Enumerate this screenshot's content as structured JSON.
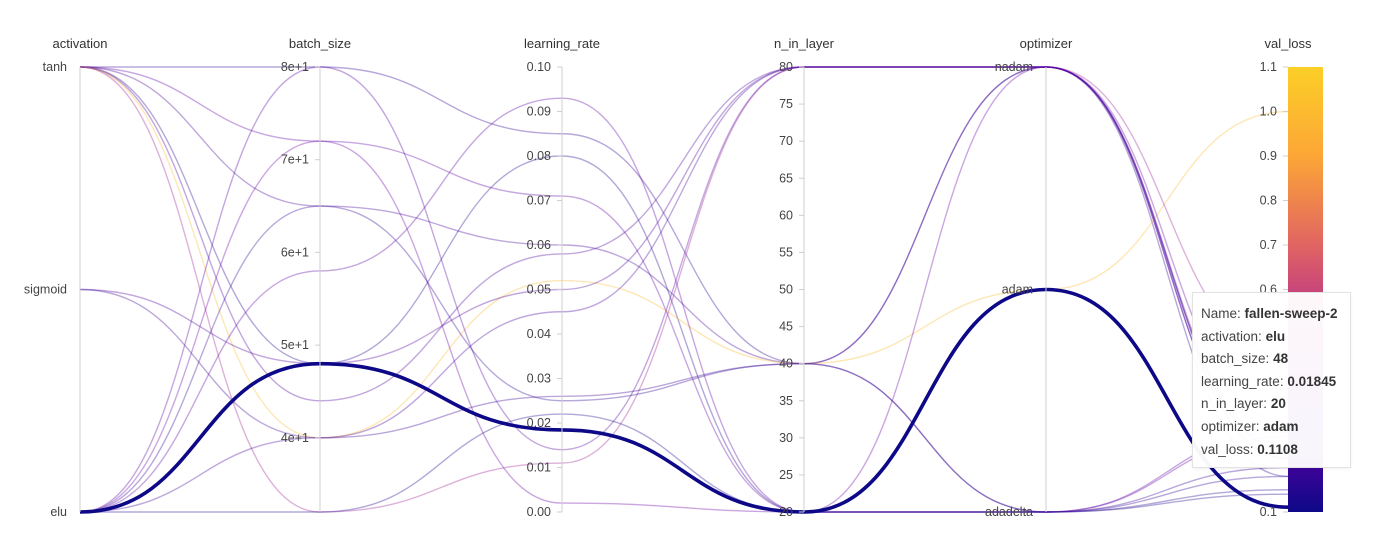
{
  "chart_data": {
    "type": "parallel_coordinates",
    "axes": [
      {
        "key": "activation",
        "label": "activation",
        "kind": "categorical",
        "categories": [
          "elu",
          "sigmoid",
          "tanh"
        ],
        "ticks": [
          "tanh",
          "sigmoid",
          "elu"
        ]
      },
      {
        "key": "batch_size",
        "label": "batch_size",
        "kind": "numeric",
        "range": [
          32,
          80
        ],
        "ticks": [
          {
            "value": 80,
            "label": "8e+1"
          },
          {
            "value": 70,
            "label": "7e+1"
          },
          {
            "value": 60,
            "label": "6e+1"
          },
          {
            "value": 50,
            "label": "5e+1"
          },
          {
            "value": 40,
            "label": "4e+1"
          }
        ]
      },
      {
        "key": "learning_rate",
        "label": "learning_rate",
        "kind": "numeric",
        "range": [
          0,
          0.1
        ],
        "ticks": [
          {
            "value": 0.1,
            "label": "0.10"
          },
          {
            "value": 0.09,
            "label": "0.09"
          },
          {
            "value": 0.08,
            "label": "0.08"
          },
          {
            "value": 0.07,
            "label": "0.07"
          },
          {
            "value": 0.06,
            "label": "0.06"
          },
          {
            "value": 0.05,
            "label": "0.05"
          },
          {
            "value": 0.04,
            "label": "0.04"
          },
          {
            "value": 0.03,
            "label": "0.03"
          },
          {
            "value": 0.02,
            "label": "0.02"
          },
          {
            "value": 0.01,
            "label": "0.01"
          },
          {
            "value": 0.0,
            "label": "0.00"
          }
        ]
      },
      {
        "key": "n_in_layer",
        "label": "n_in_layer",
        "kind": "numeric",
        "range": [
          20,
          80
        ],
        "ticks": [
          {
            "value": 80,
            "label": "80"
          },
          {
            "value": 75,
            "label": "75"
          },
          {
            "value": 70,
            "label": "70"
          },
          {
            "value": 65,
            "label": "65"
          },
          {
            "value": 60,
            "label": "60"
          },
          {
            "value": 55,
            "label": "55"
          },
          {
            "value": 50,
            "label": "50"
          },
          {
            "value": 45,
            "label": "45"
          },
          {
            "value": 40,
            "label": "40"
          },
          {
            "value": 35,
            "label": "35"
          },
          {
            "value": 30,
            "label": "30"
          },
          {
            "value": 25,
            "label": "25"
          },
          {
            "value": 20,
            "label": "20"
          }
        ]
      },
      {
        "key": "optimizer",
        "label": "optimizer",
        "kind": "categorical",
        "categories": [
          "adadelta",
          "adam",
          "nadam"
        ],
        "ticks": [
          "nadam",
          "adam",
          "adadelta"
        ]
      },
      {
        "key": "val_loss",
        "label": "val_loss",
        "kind": "numeric",
        "range": [
          0.1,
          1.1
        ],
        "ticks": [
          {
            "value": 1.1,
            "label": "1.1"
          },
          {
            "value": 1.0,
            "label": "1.0"
          },
          {
            "value": 0.9,
            "label": "0.9"
          },
          {
            "value": 0.8,
            "label": "0.8"
          },
          {
            "value": 0.7,
            "label": "0.7"
          },
          {
            "value": 0.6,
            "label": "0.6"
          },
          {
            "value": 0.1,
            "label": "0.1"
          }
        ]
      }
    ],
    "colorbar": {
      "axis": "val_loss",
      "range": [
        0.1,
        1.1
      ],
      "stops": [
        "#0d0887",
        "#6a00a8",
        "#b12a90",
        "#e16462",
        "#fca636",
        "#fccf27"
      ]
    },
    "runs": [
      {
        "activation": "tanh",
        "batch_size": 80,
        "learning_rate": 0.085,
        "n_in_layer": 40,
        "optimizer": "nadam",
        "val_loss": 0.18
      },
      {
        "activation": "tanh",
        "batch_size": 72,
        "learning_rate": 0.071,
        "n_in_layer": 20,
        "optimizer": "adadelta",
        "val_loss": 0.28
      },
      {
        "activation": "tanh",
        "batch_size": 65,
        "learning_rate": 0.06,
        "n_in_layer": 40,
        "optimizer": "nadam",
        "val_loss": 0.22
      },
      {
        "activation": "tanh",
        "batch_size": 48,
        "learning_rate": 0.08,
        "n_in_layer": 20,
        "optimizer": "adadelta",
        "val_loss": 0.15
      },
      {
        "activation": "tanh",
        "batch_size": 44,
        "learning_rate": 0.058,
        "n_in_layer": 80,
        "optimizer": "nadam",
        "val_loss": 0.24
      },
      {
        "activation": "tanh",
        "batch_size": 40,
        "learning_rate": 0.052,
        "n_in_layer": 40,
        "optimizer": "adam",
        "val_loss": 1.0
      },
      {
        "activation": "tanh",
        "batch_size": 32,
        "learning_rate": 0.011,
        "n_in_layer": 80,
        "optimizer": "nadam",
        "val_loss": 0.45
      },
      {
        "activation": "sigmoid",
        "batch_size": 48,
        "learning_rate": 0.05,
        "n_in_layer": 80,
        "optimizer": "nadam",
        "val_loss": 0.24
      },
      {
        "activation": "sigmoid",
        "batch_size": 40,
        "learning_rate": 0.026,
        "n_in_layer": 40,
        "optimizer": "adadelta",
        "val_loss": 0.2
      },
      {
        "activation": "elu",
        "batch_size": 80,
        "learning_rate": 0.014,
        "n_in_layer": 80,
        "optimizer": "nadam",
        "val_loss": 0.25
      },
      {
        "activation": "elu",
        "batch_size": 72,
        "learning_rate": 0.002,
        "n_in_layer": 20,
        "optimizer": "nadam",
        "val_loss": 0.3
      },
      {
        "activation": "elu",
        "batch_size": 65,
        "learning_rate": 0.025,
        "n_in_layer": 40,
        "optimizer": "adadelta",
        "val_loss": 0.18
      },
      {
        "activation": "elu",
        "batch_size": 58,
        "learning_rate": 0.093,
        "n_in_layer": 20,
        "optimizer": "adadelta",
        "val_loss": 0.27
      },
      {
        "activation": "elu",
        "batch_size": 48,
        "learning_rate": 0.01845,
        "n_in_layer": 20,
        "optimizer": "adam",
        "val_loss": 0.1108,
        "highlighted": true
      },
      {
        "activation": "elu",
        "batch_size": 40,
        "learning_rate": 0.045,
        "n_in_layer": 80,
        "optimizer": "nadam",
        "val_loss": 0.22
      },
      {
        "activation": "elu",
        "batch_size": 32,
        "learning_rate": 0.022,
        "n_in_layer": 20,
        "optimizer": "adadelta",
        "val_loss": 0.14
      }
    ]
  },
  "tooltip": {
    "rows": [
      {
        "key": "Name",
        "value": "fallen-sweep-2"
      },
      {
        "key": "activation",
        "value": "elu"
      },
      {
        "key": "batch_size",
        "value": "48"
      },
      {
        "key": "learning_rate",
        "value": "0.01845"
      },
      {
        "key": "n_in_layer",
        "value": "20"
      },
      {
        "key": "optimizer",
        "value": "adam"
      },
      {
        "key": "val_loss",
        "value": "0.1108"
      }
    ]
  }
}
